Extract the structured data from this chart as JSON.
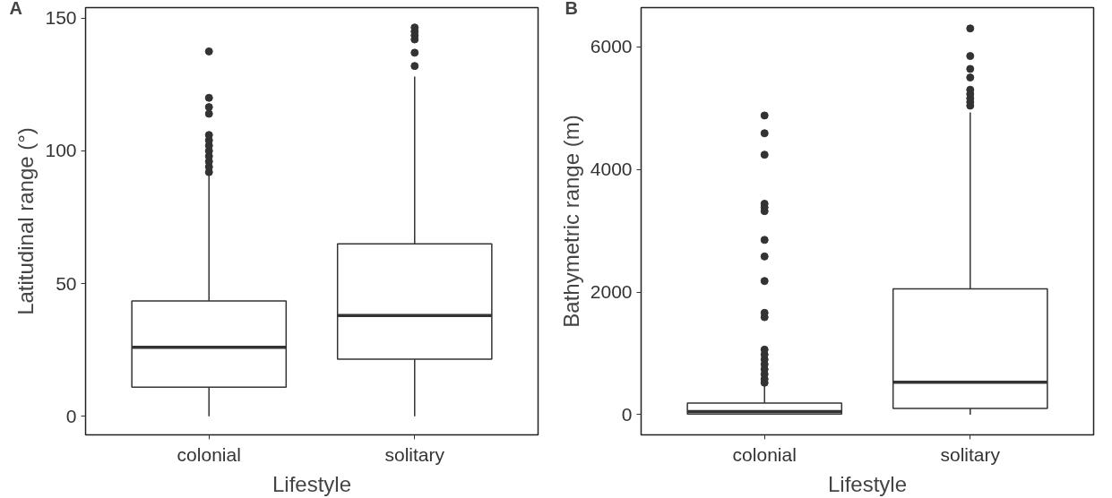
{
  "chart_data": [
    {
      "type": "box",
      "title": "A",
      "xlabel": "Lifestyle",
      "ylabel": "Latitudinal range (°)",
      "categories": [
        "colonial",
        "solitary"
      ],
      "ylim": [
        -7,
        154
      ],
      "yticks": [
        0,
        50,
        100,
        150
      ],
      "grid": false,
      "color": "#333333",
      "boxes": [
        {
          "low": 0,
          "q1": 11,
          "median": 26,
          "q3": 43.5,
          "high": 91,
          "outliers": [
            92,
            94,
            96,
            98,
            100,
            102,
            104,
            106,
            114,
            116.5,
            120,
            137.5
          ]
        },
        {
          "low": 0,
          "q1": 21.5,
          "median": 38,
          "q3": 65,
          "high": 128,
          "outliers": [
            132,
            137,
            142,
            143.5,
            145,
            146.5
          ]
        }
      ]
    },
    {
      "type": "box",
      "title": "B",
      "xlabel": "Lifestyle",
      "ylabel": "Bathymetric range (m)",
      "categories": [
        "colonial",
        "solitary"
      ],
      "ylim": [
        -330,
        6640
      ],
      "yticks": [
        0,
        2000,
        4000,
        6000
      ],
      "grid": false,
      "color": "#333333",
      "boxes": [
        {
          "low": 0,
          "q1": 10,
          "median": 50,
          "q3": 190,
          "high": 470,
          "outliers": [
            520,
            580,
            660,
            740,
            820,
            900,
            980,
            1060,
            1590,
            1660,
            2180,
            2580,
            2850,
            3320,
            3380,
            3440,
            4240,
            4590,
            4880
          ]
        },
        {
          "low": 0,
          "q1": 100,
          "median": 530,
          "q3": 2050,
          "high": 4930,
          "outliers": [
            5040,
            5100,
            5160,
            5230,
            5300,
            5500,
            5640,
            5850,
            6300
          ]
        }
      ]
    }
  ]
}
